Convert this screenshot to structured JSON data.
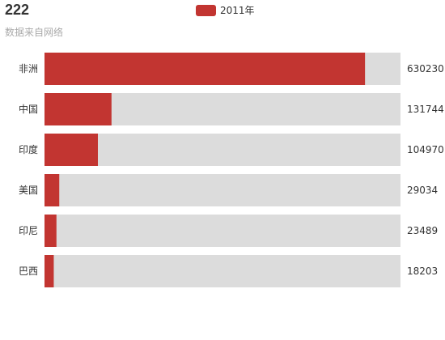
{
  "chart_data": {
    "type": "bar",
    "orientation": "horizontal",
    "title": "222",
    "subtitle": "数据来自网络",
    "categories": [
      "非洲",
      "中国",
      "印度",
      "美国",
      "印尼",
      "巴西"
    ],
    "series": [
      {
        "name": "2011年",
        "values": [
          630230,
          131744,
          104970,
          29034,
          23489,
          18203
        ]
      }
    ],
    "xlim": [
      0,
      700000
    ],
    "legend_position": "top-center",
    "grid": false,
    "show_background_bar": true
  },
  "colors": {
    "bar": "#c23531",
    "background_bar": "#dcdcdc"
  }
}
